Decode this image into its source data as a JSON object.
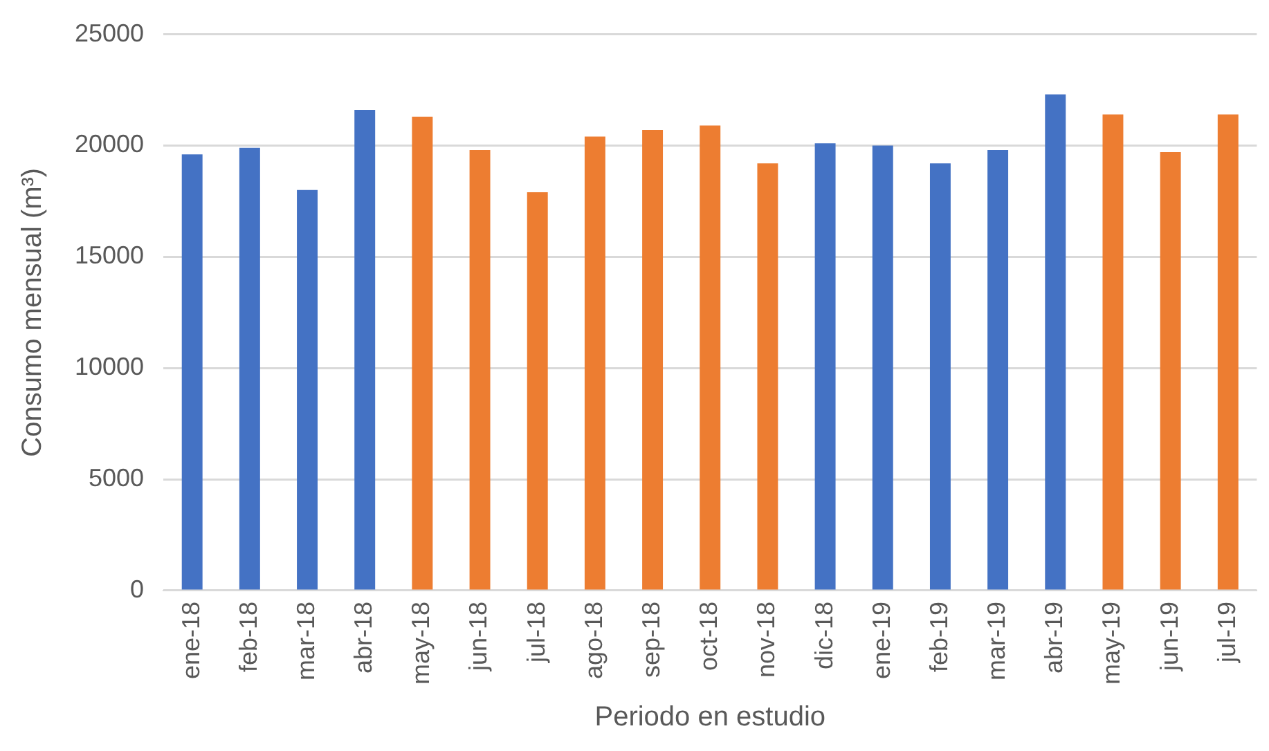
{
  "chart_data": {
    "type": "bar",
    "xlabel": "Periodo en estudio",
    "ylabel": "Consumo mensual (m³)",
    "categories": [
      "ene-18",
      "feb-18",
      "mar-18",
      "abr-18",
      "may-18",
      "jun-18",
      "jul-18",
      "ago-18",
      "sep-18",
      "oct-18",
      "nov-18",
      "dic-18",
      "ene-19",
      "feb-19",
      "mar-19",
      "abr-19",
      "may-19",
      "jun-19",
      "jul-19"
    ],
    "values": [
      19600,
      19900,
      18000,
      21600,
      21300,
      19800,
      17900,
      20400,
      20700,
      20900,
      19200,
      20100,
      20000,
      19200,
      19800,
      22300,
      21400,
      19700,
      21400
    ],
    "colors": [
      "#4472c4",
      "#4472c4",
      "#4472c4",
      "#4472c4",
      "#ed7d31",
      "#ed7d31",
      "#ed7d31",
      "#ed7d31",
      "#ed7d31",
      "#ed7d31",
      "#ed7d31",
      "#4472c4",
      "#4472c4",
      "#4472c4",
      "#4472c4",
      "#4472c4",
      "#ed7d31",
      "#ed7d31",
      "#ed7d31"
    ],
    "ylim": [
      0,
      25000
    ],
    "yticks": [
      0,
      5000,
      10000,
      15000,
      20000,
      25000
    ],
    "grid": "y",
    "legend": false
  }
}
